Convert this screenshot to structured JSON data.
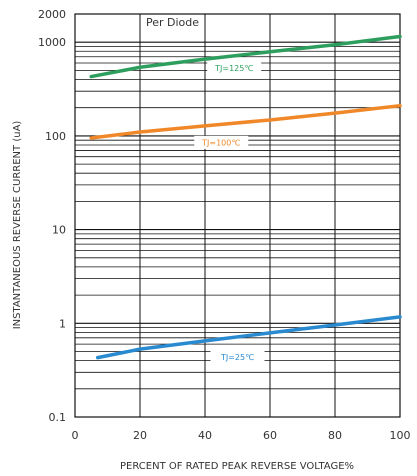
{
  "chart_data": {
    "type": "line",
    "title": "",
    "annotation": "Per Diode",
    "xlabel": "PERCENT OF RATED PEAK REVERSE VOLTAGE%",
    "ylabel": "INSTANTANEOUS REVERSE CURRENT (uA)",
    "x_scale": "linear",
    "y_scale": "log",
    "xlim": [
      0,
      100
    ],
    "ylim": [
      0.1,
      2000
    ],
    "x_ticks": [
      0,
      20,
      40,
      60,
      80,
      100
    ],
    "x_tick_labels": [
      "0",
      "20",
      "40",
      "60",
      "80",
      "100"
    ],
    "y_ticks": [
      0.1,
      1,
      10,
      100,
      1000,
      2000
    ],
    "y_tick_labels": [
      "0.1",
      "1",
      "10",
      "100",
      "1000",
      "2000"
    ],
    "grid": true,
    "legend": "none",
    "series": [
      {
        "name": "TJ=125℃",
        "color": "#2e9e5e",
        "x": [
          5,
          20,
          40,
          60,
          80,
          100
        ],
        "y": [
          430,
          540,
          660,
          790,
          940,
          1150
        ]
      },
      {
        "name": "TJ=100℃",
        "color": "#f0882a",
        "x": [
          5,
          20,
          40,
          60,
          80,
          100
        ],
        "y": [
          95,
          110,
          128,
          148,
          175,
          210
        ]
      },
      {
        "name": "TJ=25℃",
        "color": "#2a8ad0",
        "x": [
          7,
          20,
          40,
          60,
          80,
          100
        ],
        "y": [
          0.43,
          0.53,
          0.65,
          0.79,
          0.96,
          1.17
        ]
      }
    ]
  }
}
